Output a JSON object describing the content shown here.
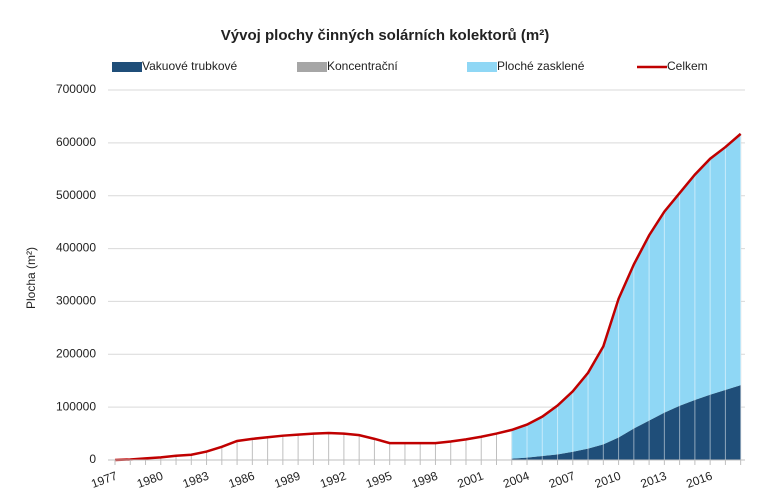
{
  "chart_data": {
    "type": "stacked_area_line",
    "title": "Vývoj plochy činných solárních kolektorů (m²)",
    "y_label": "Plocha (m²)",
    "categories": [
      "1977",
      null,
      null,
      "1980",
      null,
      null,
      "1983",
      null,
      null,
      "1986",
      null,
      null,
      "1989",
      null,
      null,
      "1992",
      null,
      null,
      "1995",
      null,
      null,
      "1998",
      null,
      null,
      "2001",
      null,
      null,
      "2004",
      null,
      null,
      "2007",
      null,
      null,
      "2010",
      null,
      null,
      "2013",
      null,
      null,
      "2016",
      null,
      null
    ],
    "series": [
      {
        "name": "Vakuové trubkové",
        "color": "#1f4e79",
        "kind": "area",
        "values": [
          null,
          null,
          null,
          null,
          null,
          null,
          null,
          null,
          null,
          null,
          null,
          null,
          null,
          null,
          null,
          null,
          null,
          null,
          null,
          null,
          null,
          null,
          null,
          null,
          null,
          null,
          3000,
          5000,
          8000,
          11000,
          16000,
          22000,
          30000,
          43000,
          60000,
          75000,
          90000,
          103000,
          114000,
          124000,
          133000,
          142000
        ]
      },
      {
        "name": "Koncentrační",
        "color": "#a6a6a6",
        "kind": "area",
        "values": [
          null,
          null,
          null,
          null,
          null,
          null,
          null,
          null,
          null,
          null,
          null,
          null,
          null,
          null,
          null,
          null,
          null,
          null,
          null,
          null,
          null,
          null,
          null,
          null,
          null,
          null,
          0,
          0,
          0,
          0,
          0,
          0,
          0,
          0,
          0,
          0,
          0,
          0,
          0,
          0,
          0,
          0
        ]
      },
      {
        "name": "Ploché zasklené",
        "color": "#8fd7f5",
        "kind": "area",
        "values": [
          null,
          null,
          null,
          null,
          null,
          null,
          null,
          null,
          null,
          null,
          null,
          null,
          null,
          null,
          null,
          null,
          null,
          null,
          null,
          null,
          null,
          null,
          null,
          null,
          null,
          null,
          54000,
          62000,
          74000,
          92000,
          114000,
          143000,
          185000,
          262000,
          310000,
          350000,
          380000,
          402000,
          426000,
          446000,
          459000,
          475000
        ]
      },
      {
        "name": "Celkem",
        "color": "#c00000",
        "kind": "line",
        "values": [
          0,
          1000,
          3000,
          5000,
          8000,
          10000,
          16000,
          25000,
          36000,
          40000,
          43000,
          46000,
          48000,
          50000,
          51000,
          50000,
          47000,
          40000,
          32000,
          32000,
          32000,
          32000,
          35000,
          39000,
          44000,
          50000,
          57000,
          67000,
          82000,
          103000,
          130000,
          165000,
          215000,
          305000,
          370000,
          425000,
          470000,
          505000,
          540000,
          570000,
          592000,
          617000
        ]
      }
    ],
    "ylim": [
      0,
      700000
    ],
    "yticks": [
      0,
      100000,
      200000,
      300000,
      400000,
      500000,
      600000,
      700000
    ],
    "grid": true
  }
}
